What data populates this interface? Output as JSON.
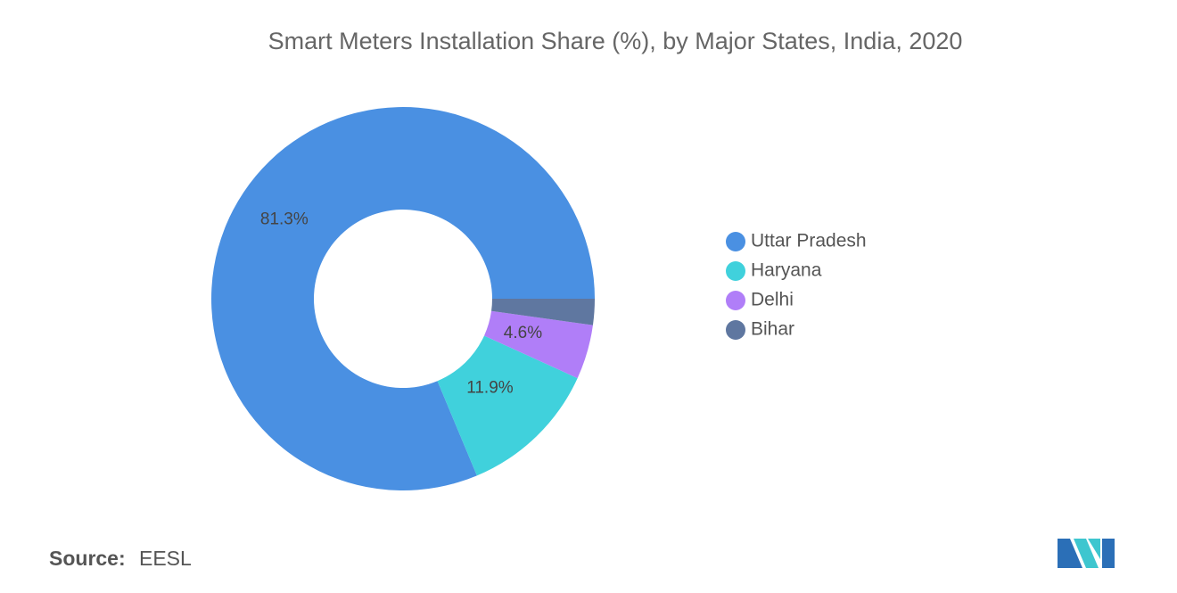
{
  "chart_data": {
    "type": "donut",
    "title": "Smart Meters Installation Share (%), by Major States, India, 2020",
    "categories": [
      "Uttar Pradesh",
      "Haryana",
      "Delhi",
      "Bihar"
    ],
    "values": [
      81.3,
      11.9,
      4.6,
      2.2
    ],
    "value_labels": [
      "81.3%",
      "11.9%",
      "4.6%",
      null
    ],
    "colors": [
      "#4a90e2",
      "#40d1dc",
      "#b07ef8",
      "#5f77a0"
    ],
    "legend": "right",
    "source_label": "Source:",
    "source": "EESL"
  }
}
